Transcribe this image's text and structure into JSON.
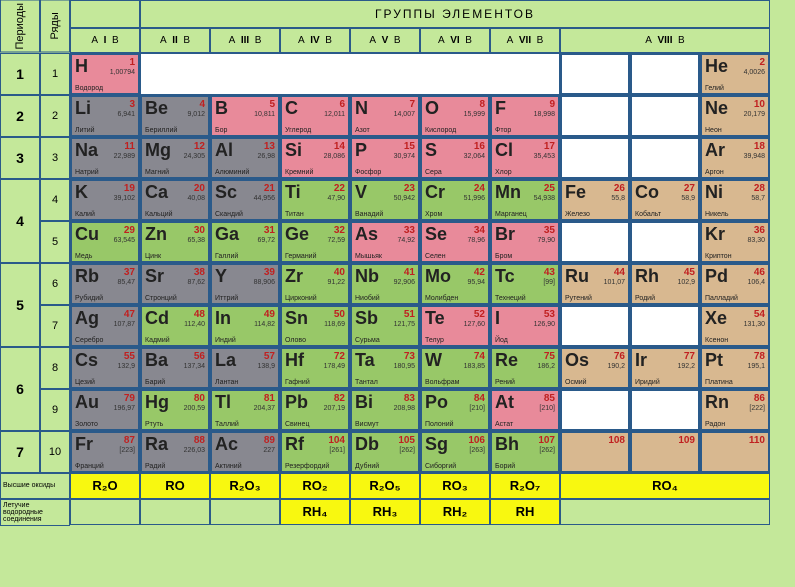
{
  "title": "ГРУППЫ  ЭЛЕМЕНТОВ",
  "period_label": "Периоды",
  "row_label": "Ряды",
  "groups": [
    "I",
    "II",
    "III",
    "IV",
    "V",
    "VI",
    "VII",
    "VIII"
  ],
  "group_sub": "А   B",
  "periods": [
    {
      "p": "1",
      "rows": [
        {
          "r": "1"
        }
      ]
    },
    {
      "p": "2",
      "rows": [
        {
          "r": "2"
        }
      ]
    },
    {
      "p": "3",
      "rows": [
        {
          "r": "3"
        }
      ]
    },
    {
      "p": "4",
      "rows": [
        {
          "r": "4"
        },
        {
          "r": "5"
        }
      ]
    },
    {
      "p": "5",
      "rows": [
        {
          "r": "6"
        },
        {
          "r": "7"
        }
      ]
    },
    {
      "p": "6",
      "rows": [
        {
          "r": "8"
        },
        {
          "r": "9"
        }
      ]
    },
    {
      "p": "7",
      "rows": [
        {
          "r": "10"
        }
      ]
    }
  ],
  "rows": {
    "1": [
      {
        "s": "H",
        "z": "1",
        "m": "1,00794",
        "n": "Водород",
        "c": "c-pink"
      },
      null,
      null,
      null,
      null,
      null,
      null,
      {
        "triple": [
          null,
          null,
          {
            "s": "He",
            "z": "2",
            "m": "4,0026",
            "n": "Гелий",
            "c": "c-tan"
          }
        ]
      }
    ],
    "2": [
      {
        "s": "Li",
        "z": "3",
        "m": "6,941",
        "n": "Литий",
        "c": "c-gray"
      },
      {
        "s": "Be",
        "z": "4",
        "m": "9,012",
        "n": "Бериллий",
        "c": "c-gray"
      },
      {
        "s": "B",
        "z": "5",
        "m": "10,811",
        "n": "Бор",
        "c": "c-pink"
      },
      {
        "s": "C",
        "z": "6",
        "m": "12,011",
        "n": "Углерод",
        "c": "c-pink"
      },
      {
        "s": "N",
        "z": "7",
        "m": "14,007",
        "n": "Азот",
        "c": "c-pink"
      },
      {
        "s": "O",
        "z": "8",
        "m": "15,999",
        "n": "Кислород",
        "c": "c-pink"
      },
      {
        "s": "F",
        "z": "9",
        "m": "18,998",
        "n": "Фтор",
        "c": "c-pink"
      },
      {
        "triple": [
          null,
          null,
          {
            "s": "Ne",
            "z": "10",
            "m": "20,179",
            "n": "Неон",
            "c": "c-tan"
          }
        ]
      }
    ],
    "3": [
      {
        "s": "Na",
        "z": "11",
        "m": "22,989",
        "n": "Натрий",
        "c": "c-gray"
      },
      {
        "s": "Mg",
        "z": "12",
        "m": "24,305",
        "n": "Магний",
        "c": "c-gray"
      },
      {
        "s": "Al",
        "z": "13",
        "m": "26,98",
        "n": "Алюминий",
        "c": "c-gray"
      },
      {
        "s": "Si",
        "z": "14",
        "m": "28,086",
        "n": "Кремний",
        "c": "c-pink"
      },
      {
        "s": "P",
        "z": "15",
        "m": "30,974",
        "n": "Фосфор",
        "c": "c-pink"
      },
      {
        "s": "S",
        "z": "16",
        "m": "32,064",
        "n": "Сера",
        "c": "c-pink"
      },
      {
        "s": "Cl",
        "z": "17",
        "m": "35,453",
        "n": "Хлор",
        "c": "c-pink"
      },
      {
        "triple": [
          null,
          null,
          {
            "s": "Ar",
            "z": "18",
            "m": "39,948",
            "n": "Аргон",
            "c": "c-tan"
          }
        ]
      }
    ],
    "4": [
      {
        "s": "K",
        "z": "19",
        "m": "39,102",
        "n": "Калий",
        "c": "c-gray"
      },
      {
        "s": "Ca",
        "z": "20",
        "m": "40,08",
        "n": "Кальций",
        "c": "c-gray"
      },
      {
        "s": "Sc",
        "z": "21",
        "m": "44,956",
        "n": "Скандий",
        "c": "c-gray"
      },
      {
        "s": "Ti",
        "z": "22",
        "m": "47,90",
        "n": "Титан",
        "c": "c-grn"
      },
      {
        "s": "V",
        "z": "23",
        "m": "50,942",
        "n": "Ванадий",
        "c": "c-grn"
      },
      {
        "s": "Cr",
        "z": "24",
        "m": "51,996",
        "n": "Хром",
        "c": "c-grn"
      },
      {
        "s": "Mn",
        "z": "25",
        "m": "54,938",
        "n": "Марганец",
        "c": "c-grn"
      },
      {
        "triple": [
          {
            "s": "Fe",
            "z": "26",
            "m": "55,8",
            "n": "Железо",
            "c": "c-tan"
          },
          {
            "s": "Co",
            "z": "27",
            "m": "58,9",
            "n": "Кобальт",
            "c": "c-tan"
          },
          {
            "s": "Ni",
            "z": "28",
            "m": "58,7",
            "n": "Никель",
            "c": "c-tan"
          }
        ]
      }
    ],
    "5": [
      {
        "s": "Cu",
        "z": "29",
        "m": "63,545",
        "n": "Медь",
        "c": "c-grn"
      },
      {
        "s": "Zn",
        "z": "30",
        "m": "65,38",
        "n": "Цинк",
        "c": "c-grn"
      },
      {
        "s": "Ga",
        "z": "31",
        "m": "69,72",
        "n": "Галлий",
        "c": "c-grn"
      },
      {
        "s": "Ge",
        "z": "32",
        "m": "72,59",
        "n": "Германий",
        "c": "c-grn"
      },
      {
        "s": "As",
        "z": "33",
        "m": "74,92",
        "n": "Мышьяк",
        "c": "c-pink"
      },
      {
        "s": "Se",
        "z": "34",
        "m": "78,96",
        "n": "Селен",
        "c": "c-pink"
      },
      {
        "s": "Br",
        "z": "35",
        "m": "79,90",
        "n": "Бром",
        "c": "c-pink"
      },
      {
        "triple": [
          null,
          null,
          {
            "s": "Kr",
            "z": "36",
            "m": "83,30",
            "n": "Криптон",
            "c": "c-tan"
          }
        ]
      }
    ],
    "6": [
      {
        "s": "Rb",
        "z": "37",
        "m": "85,47",
        "n": "Рубидий",
        "c": "c-gray"
      },
      {
        "s": "Sr",
        "z": "38",
        "m": "87,62",
        "n": "Стронций",
        "c": "c-gray"
      },
      {
        "s": "Y",
        "z": "39",
        "m": "88,906",
        "n": "Иттрий",
        "c": "c-gray"
      },
      {
        "s": "Zr",
        "z": "40",
        "m": "91,22",
        "n": "Цирконий",
        "c": "c-grn"
      },
      {
        "s": "Nb",
        "z": "41",
        "m": "92,906",
        "n": "Ниобий",
        "c": "c-grn"
      },
      {
        "s": "Mo",
        "z": "42",
        "m": "95,94",
        "n": "Молибден",
        "c": "c-grn"
      },
      {
        "s": "Tc",
        "z": "43",
        "m": "[99]",
        "n": "Технеций",
        "c": "c-grn"
      },
      {
        "triple": [
          {
            "s": "Ru",
            "z": "44",
            "m": "101,07",
            "n": "Рутений",
            "c": "c-tan"
          },
          {
            "s": "Rh",
            "z": "45",
            "m": "102,9",
            "n": "Родий",
            "c": "c-tan"
          },
          {
            "s": "Pd",
            "z": "46",
            "m": "106,4",
            "n": "Палладий",
            "c": "c-tan"
          }
        ]
      }
    ],
    "7": [
      {
        "s": "Ag",
        "z": "47",
        "m": "107,87",
        "n": "Серебро",
        "c": "c-gray"
      },
      {
        "s": "Cd",
        "z": "48",
        "m": "112,40",
        "n": "Кадмий",
        "c": "c-grn"
      },
      {
        "s": "In",
        "z": "49",
        "m": "114,82",
        "n": "Индий",
        "c": "c-grn"
      },
      {
        "s": "Sn",
        "z": "50",
        "m": "118,69",
        "n": "Олово",
        "c": "c-grn"
      },
      {
        "s": "Sb",
        "z": "51",
        "m": "121,75",
        "n": "Сурьма",
        "c": "c-grn"
      },
      {
        "s": "Te",
        "z": "52",
        "m": "127,60",
        "n": "Телур",
        "c": "c-pink"
      },
      {
        "s": "I",
        "z": "53",
        "m": "126,90",
        "n": "Йод",
        "c": "c-pink"
      },
      {
        "triple": [
          null,
          null,
          {
            "s": "Xe",
            "z": "54",
            "m": "131,30",
            "n": "Ксенон",
            "c": "c-tan"
          }
        ]
      }
    ],
    "8": [
      {
        "s": "Cs",
        "z": "55",
        "m": "132,9",
        "n": "Цезий",
        "c": "c-gray"
      },
      {
        "s": "Ba",
        "z": "56",
        "m": "137,34",
        "n": "Барий",
        "c": "c-gray"
      },
      {
        "s": "La",
        "z": "57",
        "m": "138,9",
        "n": "Лантан",
        "c": "c-gray"
      },
      {
        "s": "Hf",
        "z": "72",
        "m": "178,49",
        "n": "Гафний",
        "c": "c-grn"
      },
      {
        "s": "Ta",
        "z": "73",
        "m": "180,95",
        "n": "Тантал",
        "c": "c-grn"
      },
      {
        "s": "W",
        "z": "74",
        "m": "183,85",
        "n": "Вольфрам",
        "c": "c-grn"
      },
      {
        "s": "Re",
        "z": "75",
        "m": "186,2",
        "n": "Рений",
        "c": "c-grn"
      },
      {
        "triple": [
          {
            "s": "Os",
            "z": "76",
            "m": "190,2",
            "n": "Осмий",
            "c": "c-tan"
          },
          {
            "s": "Ir",
            "z": "77",
            "m": "192,2",
            "n": "Иридий",
            "c": "c-tan"
          },
          {
            "s": "Pt",
            "z": "78",
            "m": "195,1",
            "n": "Платина",
            "c": "c-tan"
          }
        ]
      }
    ],
    "9": [
      {
        "s": "Au",
        "z": "79",
        "m": "196,97",
        "n": "Золото",
        "c": "c-gray"
      },
      {
        "s": "Hg",
        "z": "80",
        "m": "200,59",
        "n": "Ртуть",
        "c": "c-grn"
      },
      {
        "s": "Tl",
        "z": "81",
        "m": "204,37",
        "n": "Таллий",
        "c": "c-grn"
      },
      {
        "s": "Pb",
        "z": "82",
        "m": "207,19",
        "n": "Свинец",
        "c": "c-grn"
      },
      {
        "s": "Bi",
        "z": "83",
        "m": "208,98",
        "n": "Висмут",
        "c": "c-grn"
      },
      {
        "s": "Po",
        "z": "84",
        "m": "[210]",
        "n": "Полоний",
        "c": "c-grn"
      },
      {
        "s": "At",
        "z": "85",
        "m": "[210]",
        "n": "Астат",
        "c": "c-pink"
      },
      {
        "triple": [
          null,
          null,
          {
            "s": "Rn",
            "z": "86",
            "m": "[222]",
            "n": "Радон",
            "c": "c-tan"
          }
        ]
      }
    ],
    "10": [
      {
        "s": "Fr",
        "z": "87",
        "m": "[223]",
        "n": "Франций",
        "c": "c-gray"
      },
      {
        "s": "Ra",
        "z": "88",
        "m": "226,03",
        "n": "Радий",
        "c": "c-gray"
      },
      {
        "s": "Ac",
        "z": "89",
        "m": "227",
        "n": "Актиний",
        "c": "c-gray"
      },
      {
        "s": "Rf",
        "z": "104",
        "m": "[261]",
        "n": "Резерфордий",
        "c": "c-grn"
      },
      {
        "s": "Db",
        "z": "105",
        "m": "[262]",
        "n": "Дубний",
        "c": "c-grn"
      },
      {
        "s": "Sg",
        "z": "106",
        "m": "[263]",
        "n": "Сиборгий",
        "c": "c-grn"
      },
      {
        "s": "Bh",
        "z": "107",
        "m": "[262]",
        "n": "Борий",
        "c": "c-grn"
      },
      {
        "triple": [
          {
            "s": "",
            "z": "108",
            "m": "",
            "n": "",
            "c": "c-tan"
          },
          {
            "s": "",
            "z": "109",
            "m": "",
            "n": "",
            "c": "c-tan"
          },
          {
            "s": "",
            "z": "110",
            "m": "",
            "n": "",
            "c": "c-tan"
          }
        ]
      }
    ]
  },
  "oxides_label": "Высшие оксиды",
  "hydrides_label": "Летучие водородные соединения",
  "oxides": [
    "R₂O",
    "RO",
    "R₂O₃",
    "RO₂",
    "R₂O₅",
    "RO₃",
    "R₂O₇",
    "RO₄"
  ],
  "hydrides": [
    "",
    "",
    "",
    "RH₄",
    "RH₃",
    "RH₂",
    "RH",
    ""
  ],
  "colors": {
    "bg": "#c4e89a",
    "border": "#2a5a8a",
    "yellow": "#f8f810"
  }
}
